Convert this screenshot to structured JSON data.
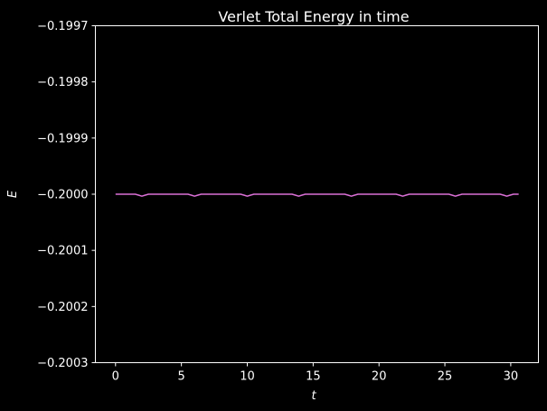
{
  "chart_data": {
    "type": "line",
    "title": "Verlet Total Energy in time",
    "xlabel": "t",
    "ylabel": "E",
    "xlim": [
      -1.53,
      32.1
    ],
    "ylim": [
      -0.2003,
      -0.1997
    ],
    "x_ticks": [
      0,
      5,
      10,
      15,
      20,
      25,
      30
    ],
    "x_tick_labels": [
      "0",
      "5",
      "10",
      "15",
      "20",
      "25",
      "30"
    ],
    "y_ticks": [
      -0.1997,
      -0.1998,
      -0.1999,
      -0.2,
      -0.2001,
      -0.2002,
      -0.2003
    ],
    "y_tick_labels": [
      "−0.1997",
      "−0.1998",
      "−0.1999",
      "−0.2000",
      "−0.2001",
      "−0.2002",
      "−0.2003"
    ],
    "grid": false,
    "background": "#000000",
    "series": [
      {
        "color": "#da70d6",
        "x": [
          0,
          1.5,
          1.8,
          2.0,
          2.2,
          2.5,
          5.5,
          5.8,
          6.0,
          6.2,
          6.5,
          9.5,
          9.8,
          10.0,
          10.2,
          10.5,
          13.4,
          13.7,
          13.9,
          14.1,
          14.4,
          17.4,
          17.7,
          17.9,
          18.1,
          18.4,
          21.3,
          21.6,
          21.8,
          22.0,
          22.3,
          25.3,
          25.6,
          25.8,
          26.0,
          26.3,
          29.2,
          29.5,
          29.7,
          29.9,
          30.2,
          30.6
        ],
        "y": [
          -0.2,
          -0.2,
          -0.200002,
          -0.2000035,
          -0.200002,
          -0.2,
          -0.2,
          -0.200002,
          -0.2000035,
          -0.200002,
          -0.2,
          -0.2,
          -0.200002,
          -0.2000035,
          -0.200002,
          -0.2,
          -0.2,
          -0.200002,
          -0.2000035,
          -0.200002,
          -0.2,
          -0.2,
          -0.200002,
          -0.2000035,
          -0.200002,
          -0.2,
          -0.2,
          -0.200002,
          -0.2000035,
          -0.200002,
          -0.2,
          -0.2,
          -0.200002,
          -0.2000035,
          -0.200002,
          -0.2,
          -0.2,
          -0.200002,
          -0.2000035,
          -0.200002,
          -0.2,
          -0.2
        ]
      }
    ]
  }
}
